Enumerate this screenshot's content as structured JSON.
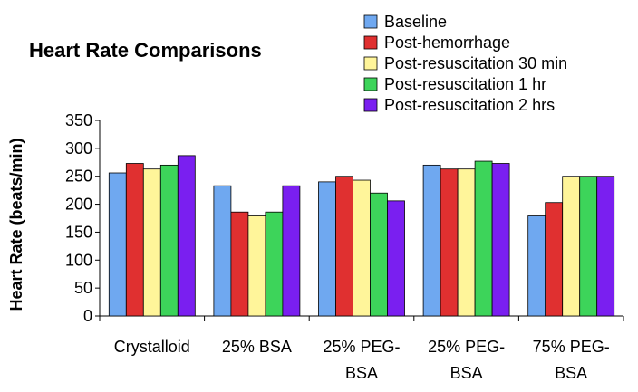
{
  "chart_data": {
    "type": "bar",
    "title": "Heart Rate Comparisons",
    "xlabel": "",
    "ylabel": "Heart Rate (beats/min)",
    "ylim": [
      0,
      350
    ],
    "yticks": [
      "0",
      "50",
      "100",
      "150",
      "200",
      "250",
      "300",
      "350"
    ],
    "grid": false,
    "legend_position": "top-right",
    "categories": [
      [
        "Crystalloid"
      ],
      [
        "25% BSA"
      ],
      [
        "25% PEG-",
        "BSA"
      ],
      [
        "25% PEG-",
        "BSA"
      ],
      [
        "75% PEG-",
        "BSA"
      ]
    ],
    "series": [
      {
        "name": "Baseline",
        "color": "#6fa8f0",
        "values": [
          256,
          233,
          240,
          270,
          179
        ]
      },
      {
        "name": "Post-hemorrhage",
        "color": "#e03030",
        "values": [
          273,
          186,
          250,
          263,
          203
        ]
      },
      {
        "name": "Post-resuscitation 30 min",
        "color": "#fff59a",
        "values": [
          263,
          179,
          243,
          263,
          250
        ]
      },
      {
        "name": "Post-resuscitation 1 hr",
        "color": "#3dd45a",
        "values": [
          270,
          186,
          220,
          277,
          250
        ]
      },
      {
        "name": "Post-resuscitation 2 hrs",
        "color": "#7a1ff0",
        "values": [
          287,
          233,
          206,
          273,
          250
        ]
      }
    ]
  }
}
